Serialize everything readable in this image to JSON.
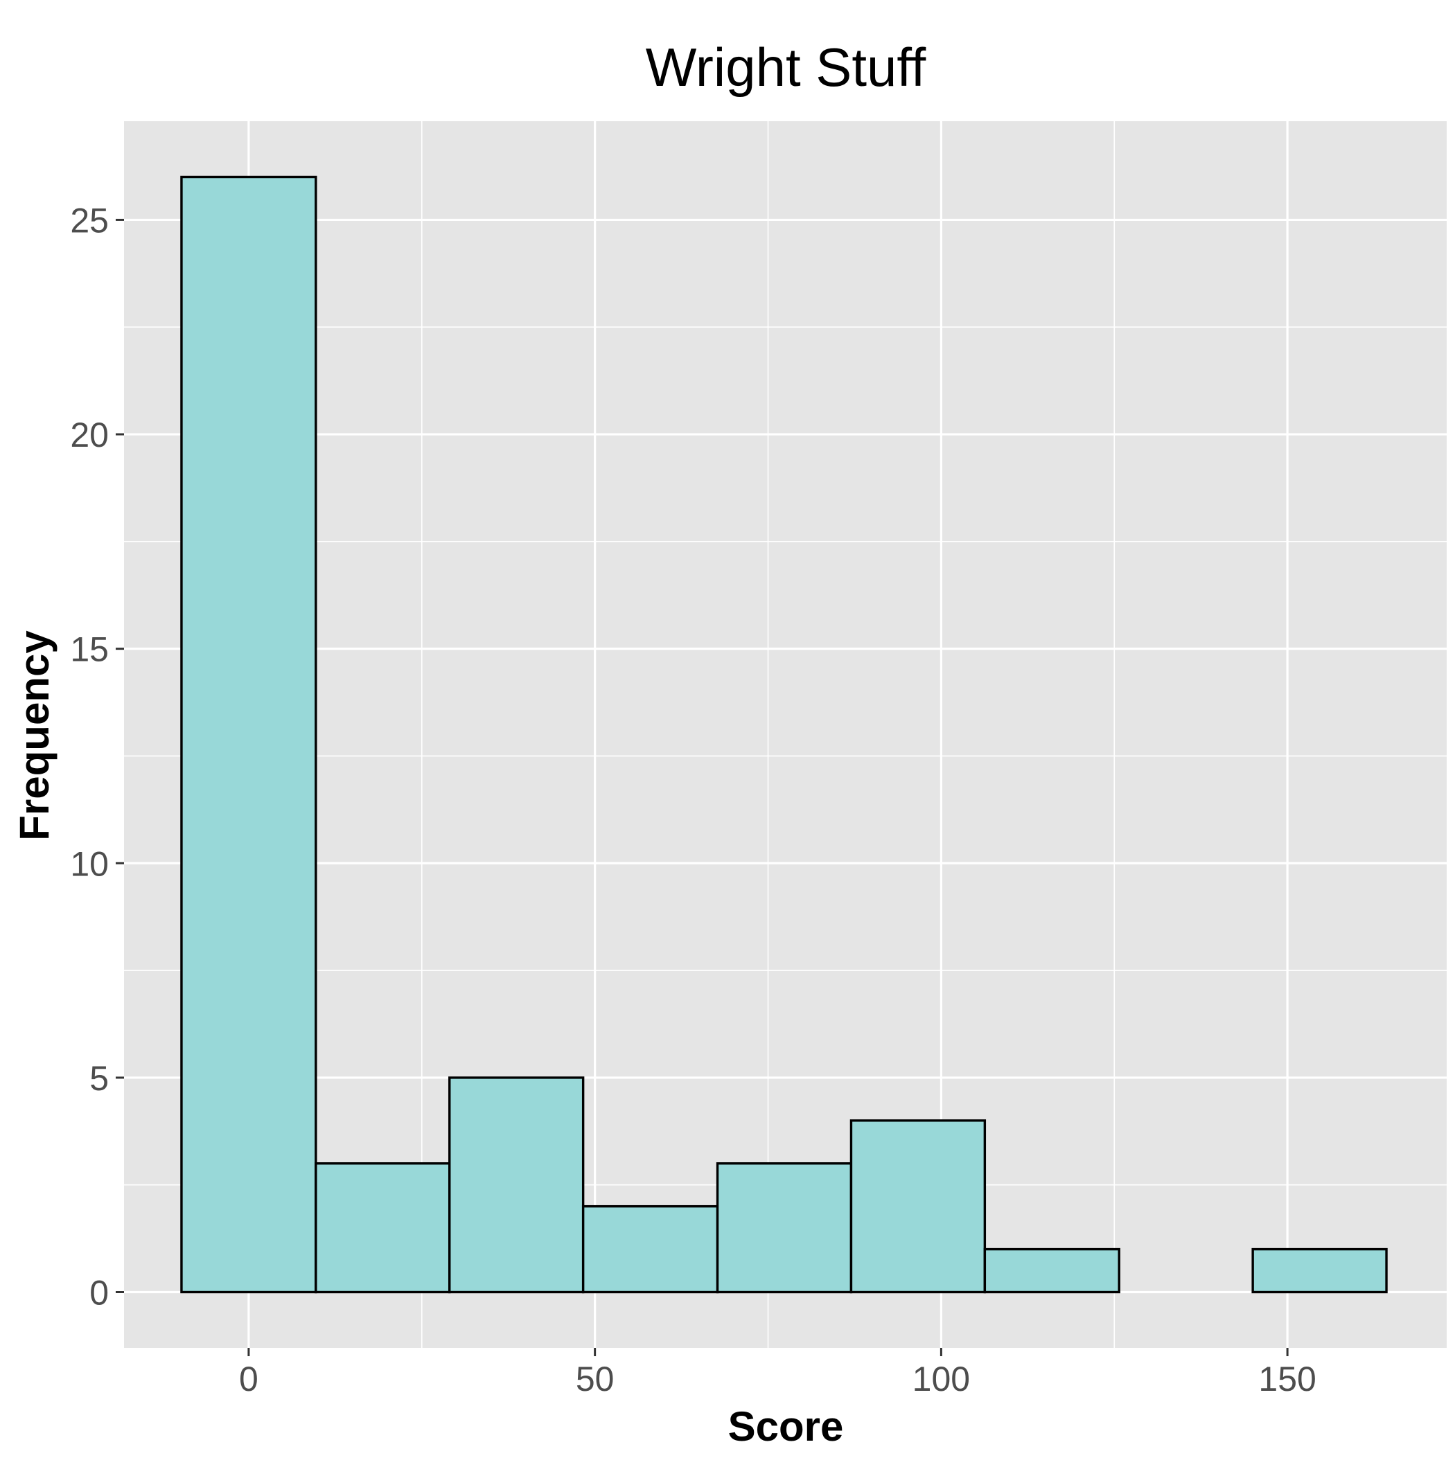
{
  "chart_data": {
    "type": "bar",
    "subtype": "histogram",
    "title": "Wright Stuff",
    "xlabel": "Score",
    "ylabel": "Frequency",
    "bins": [
      {
        "x0": -9.7,
        "x1": 9.7,
        "count": 26
      },
      {
        "x0": 9.7,
        "x1": 29.0,
        "count": 3
      },
      {
        "x0": 29.0,
        "x1": 48.3,
        "count": 5
      },
      {
        "x0": 48.3,
        "x1": 67.7,
        "count": 2
      },
      {
        "x0": 67.7,
        "x1": 87.0,
        "count": 3
      },
      {
        "x0": 87.0,
        "x1": 106.3,
        "count": 4
      },
      {
        "x0": 106.3,
        "x1": 125.7,
        "count": 1
      },
      {
        "x0": 125.7,
        "x1": 145.0,
        "count": 0
      },
      {
        "x0": 145.0,
        "x1": 164.3,
        "count": 1
      }
    ],
    "xlim": [
      -18,
      173
    ],
    "ylim": [
      -1.3,
      27.3
    ],
    "x_ticks": [
      0,
      50,
      100,
      150
    ],
    "x_tick_labels": [
      "0",
      "50",
      "100",
      "150"
    ],
    "y_ticks": [
      0,
      5,
      10,
      15,
      20,
      25
    ],
    "y_tick_labels": [
      "0",
      "5",
      "10",
      "15",
      "20",
      "25"
    ],
    "grid": true,
    "legend": "none",
    "colors": {
      "bar_fill": "#98D8D8",
      "bar_stroke": "#000000",
      "panel_background": "#E5E5E5",
      "grid_line": "#FFFFFF",
      "tick_mark": "#333333"
    }
  }
}
